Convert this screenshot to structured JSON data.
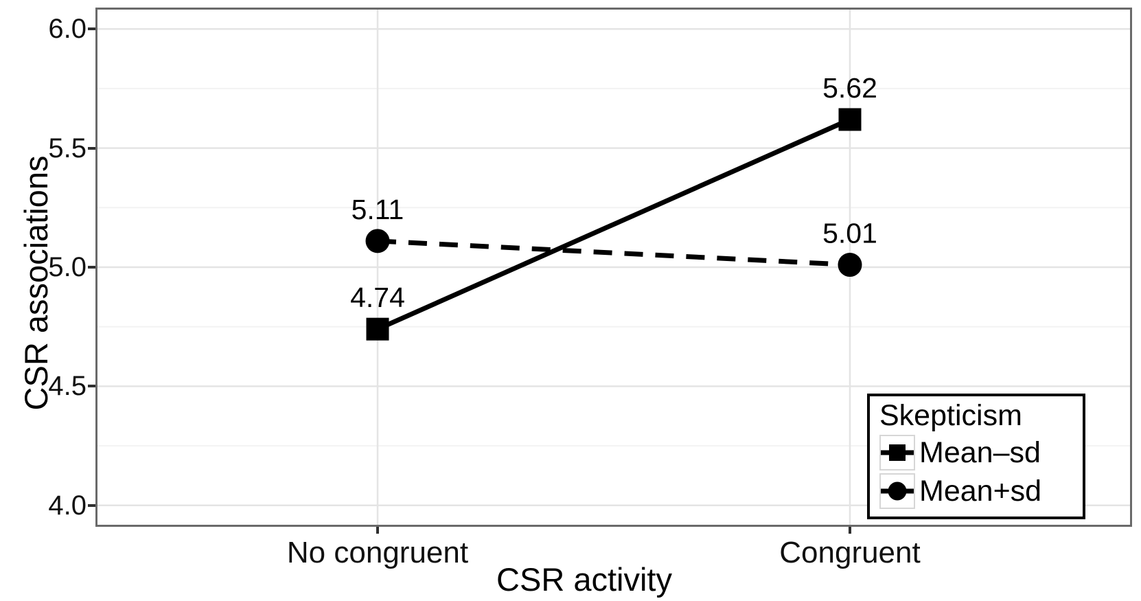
{
  "chart_data": {
    "type": "line",
    "title": "",
    "xlabel": "CSR activity",
    "ylabel": "CSR associations",
    "categories": [
      "No congruent",
      "Congruent"
    ],
    "series": [
      {
        "name": "Mean–sd",
        "marker": "square",
        "line_style": "solid",
        "values": [
          4.74,
          5.62
        ],
        "data_labels": [
          "4.74",
          "5.62"
        ]
      },
      {
        "name": "Mean+sd",
        "marker": "circle",
        "line_style": "dashed",
        "values": [
          5.11,
          5.01
        ],
        "data_labels": [
          "5.11",
          "5.01"
        ]
      }
    ],
    "legend": {
      "title": "Skepticism",
      "position": "bottom-right"
    },
    "ylim": [
      3.91,
      6.09
    ],
    "yticks": [
      4.0,
      4.5,
      5.0,
      5.5,
      6.0
    ],
    "ytick_labels": [
      "4.0",
      "4.5",
      "5.0",
      "5.5",
      "6.0"
    ],
    "yminor_ticks": [
      4.25,
      4.75,
      5.25,
      5.75
    ],
    "grid": "horizontal major+minor on; vertical major at categories; legend framed",
    "colors": {
      "series": "#000000",
      "grid_major": "#e4e4e4",
      "grid_minor": "#f3f3f3",
      "panel_border": "#6a6a6a",
      "tick_mark": "#2f2f2f",
      "text": "#000000",
      "background": "#ffffff"
    }
  }
}
